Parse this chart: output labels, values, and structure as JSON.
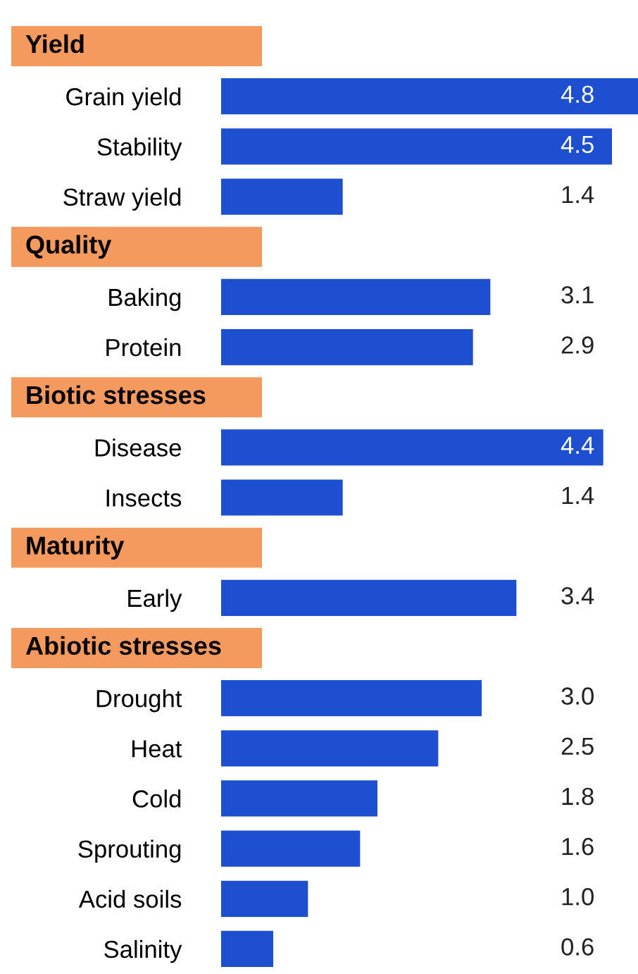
{
  "chart_data": [
    {
      "type": "bar",
      "orientation": "horizontal",
      "title": "Yield",
      "categories": [
        "Grain yield",
        "Stability",
        "Straw yield"
      ],
      "values": [
        4.8,
        4.5,
        1.4
      ],
      "color": "#1f4fd1",
      "data_labels": true
    },
    {
      "type": "bar",
      "orientation": "horizontal",
      "title": "Quality",
      "categories": [
        "Baking",
        "Protein"
      ],
      "values": [
        3.1,
        2.9
      ],
      "color": "#1f4fd1",
      "data_labels": true
    },
    {
      "type": "bar",
      "orientation": "horizontal",
      "title": "Biotic stresses",
      "categories": [
        "Disease",
        "Insects"
      ],
      "values": [
        4.4,
        1.4
      ],
      "color": "#1f4fd1",
      "data_labels": true
    },
    {
      "type": "bar",
      "orientation": "horizontal",
      "title": "Maturity",
      "categories": [
        "Early"
      ],
      "values": [
        3.4
      ],
      "color": "#1f4fd1",
      "data_labels": true
    },
    {
      "type": "bar",
      "orientation": "horizontal",
      "title": "Abiotic stresses",
      "categories": [
        "Drought",
        "Heat",
        "Cold",
        "Sprouting",
        "Acid soils",
        "Salinity"
      ],
      "values": [
        3.0,
        2.5,
        1.8,
        1.6,
        1.0,
        0.6
      ],
      "value_labels": [
        "3.0",
        "2.5",
        "1.8",
        "1.6",
        "1.0",
        "0.6"
      ],
      "color": "#1f4fd1"
    }
  ]
}
